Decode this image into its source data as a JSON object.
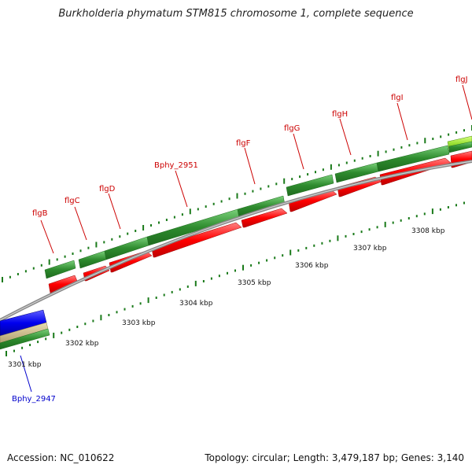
{
  "title": "Burkholderia phymatum STM815 chromosome 1, complete sequence",
  "footer": {
    "accession": "Accession: NC_010622",
    "topology": "Topology: circular; Length: 3,479,187 bp; Genes: 3,140"
  },
  "colors": {
    "forward_gene": "#2e8b2e",
    "cds": "#ff0000",
    "other_gene": "#0000ff",
    "highlight_gene": "#99e033",
    "label_red": "#cc0000",
    "label_blue": "#0000cc",
    "tick": "#1a7a1a",
    "backbone": "#888888"
  },
  "genes": [
    {
      "label": "flgB"
    },
    {
      "label": "flgC"
    },
    {
      "label": "flgD"
    },
    {
      "label": "Bphy_2951"
    },
    {
      "label": "flgF"
    },
    {
      "label": "flgG"
    },
    {
      "label": "flgH"
    },
    {
      "label": "flgI"
    },
    {
      "label": "flgJ"
    },
    {
      "label": "Bphy_2947"
    }
  ],
  "scale_labels": [
    "3301 kbp",
    "3302 kbp",
    "3303 kbp",
    "3304 kbp",
    "3305 kbp",
    "3306 kbp",
    "3307 kbp",
    "3308 kbp"
  ]
}
